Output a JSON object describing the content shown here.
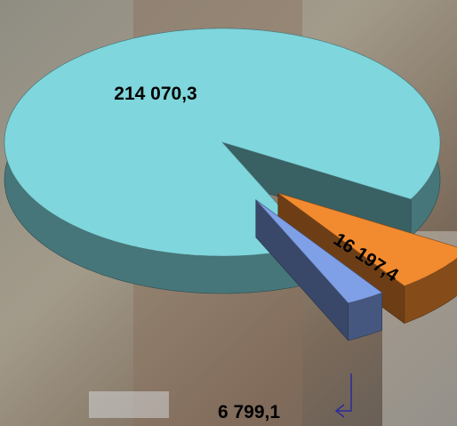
{
  "chart_data": {
    "type": "pie3d",
    "categories": [
      null,
      null,
      null
    ],
    "values": [
      214070.3,
      16197.4,
      6799.1
    ],
    "value_labels": [
      "214 070,3",
      "16 197,4",
      "6 799,1"
    ],
    "colors": [
      "#7fd6dc",
      "#f28a30",
      "#7f9fe6"
    ]
  }
}
